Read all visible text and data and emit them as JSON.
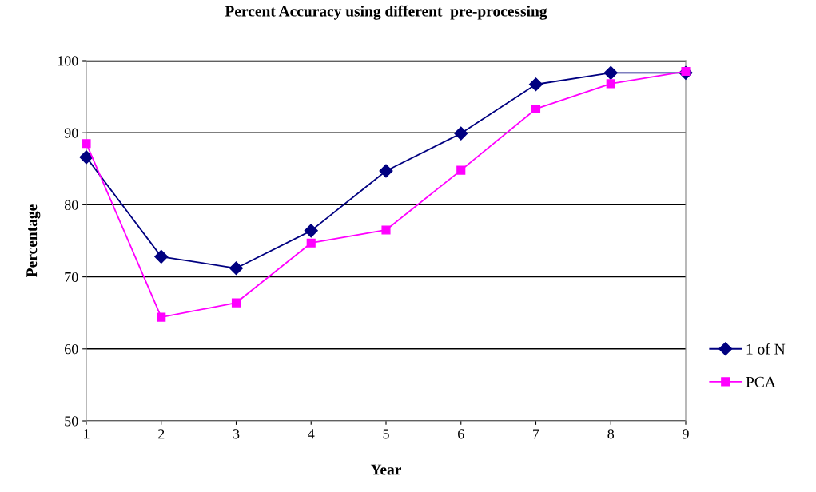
{
  "chart_data": {
    "type": "line",
    "title": "Percent Accuracy using different  pre-processing",
    "xlabel": "Year",
    "ylabel": "Percentage",
    "categories": [
      "1",
      "2",
      "3",
      "4",
      "5",
      "6",
      "7",
      "8",
      "9"
    ],
    "series": [
      {
        "name": "1 of N",
        "color": "#000080",
        "marker": "diamond",
        "values": [
          86.6,
          72.8,
          71.2,
          76.4,
          84.7,
          89.9,
          96.7,
          98.3,
          98.3
        ]
      },
      {
        "name": "PCA",
        "color": "#ff00ff",
        "marker": "square",
        "values": [
          88.5,
          64.4,
          66.4,
          74.7,
          76.5,
          84.8,
          93.3,
          96.8,
          98.5
        ]
      }
    ],
    "ylim": [
      50,
      100
    ],
    "yticks": [
      50,
      60,
      70,
      80,
      90,
      100
    ],
    "grid": "y",
    "legend": "right",
    "line_style": "solid"
  }
}
